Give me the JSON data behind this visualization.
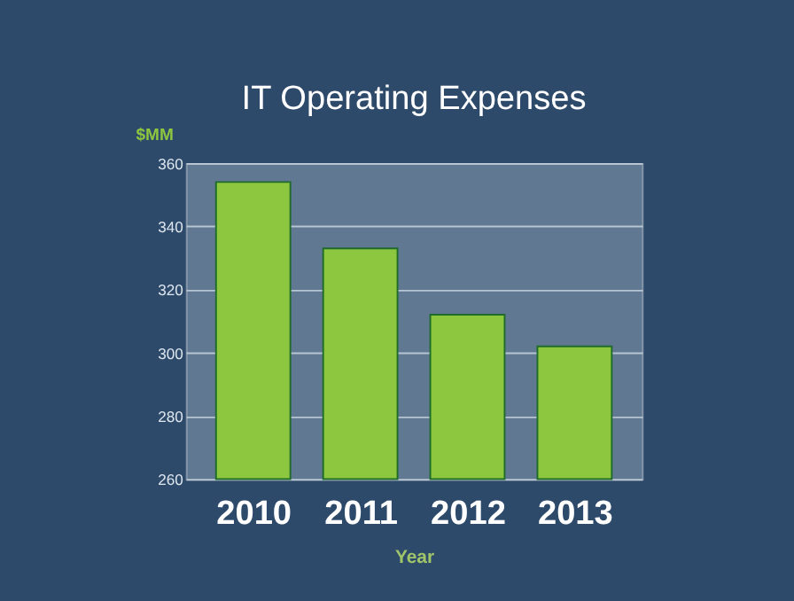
{
  "chart_data": {
    "type": "bar",
    "title": "IT Operating Expenses",
    "ylabel": "$MM",
    "xlabel": "Year",
    "categories": [
      "2010",
      "2011",
      "2012",
      "2013"
    ],
    "values": [
      354,
      333,
      312,
      302
    ],
    "color": "#8dc63f",
    "ylim": [
      260,
      360
    ],
    "yticks": [
      260,
      280,
      300,
      320,
      340,
      360
    ],
    "grid": "y"
  }
}
